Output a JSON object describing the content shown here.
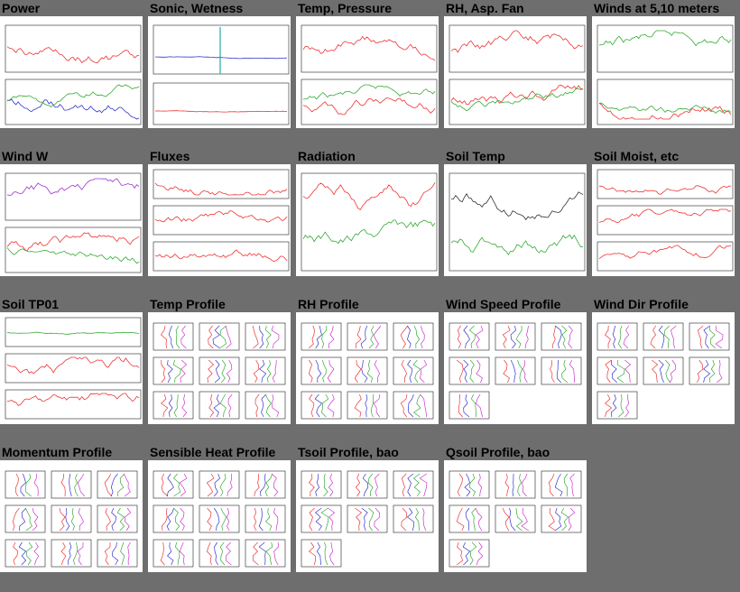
{
  "tiles": [
    {
      "title": "Power",
      "kind": "timeseries2",
      "color": "#e33"
    },
    {
      "title": "Sonic, Wetness",
      "kind": "spike",
      "color": "#2aa"
    },
    {
      "title": "Temp, Pressure",
      "kind": "timeseries2",
      "color": "#e33"
    },
    {
      "title": "RH, Asp. Fan",
      "kind": "timeseries2",
      "color": "#e33"
    },
    {
      "title": "Winds at 5,10 meters",
      "kind": "timeseries2",
      "color": "#3a3"
    },
    {
      "title": "Wind W",
      "kind": "timeseries2",
      "color": "#93c"
    },
    {
      "title": "Fluxes",
      "kind": "timeseries3",
      "color": "#e33"
    },
    {
      "title": "Radiation",
      "kind": "radiation",
      "color": "#e33"
    },
    {
      "title": "Soil Temp",
      "kind": "soil",
      "color": "#333"
    },
    {
      "title": "Soil Moist, etc",
      "kind": "timeseries3",
      "color": "#e33"
    },
    {
      "title": "Soil TP01",
      "kind": "step3",
      "color": "#e33"
    },
    {
      "title": "Temp Profile",
      "kind": "profile",
      "color": "#333"
    },
    {
      "title": "RH Profile",
      "kind": "profile",
      "color": "#333"
    },
    {
      "title": "Wind Speed Profile",
      "kind": "profile",
      "color": "#333"
    },
    {
      "title": "Wind Dir Profile",
      "kind": "profile",
      "color": "#333"
    },
    {
      "title": "Momentum Profile",
      "kind": "profile",
      "color": "#333"
    },
    {
      "title": "Sensible Heat Profile",
      "kind": "profile",
      "color": "#333"
    },
    {
      "title": "Tsoil Profile, bao",
      "kind": "profile",
      "color": "#333"
    },
    {
      "title": "Qsoil Profile, bao",
      "kind": "profile",
      "color": "#333"
    }
  ]
}
